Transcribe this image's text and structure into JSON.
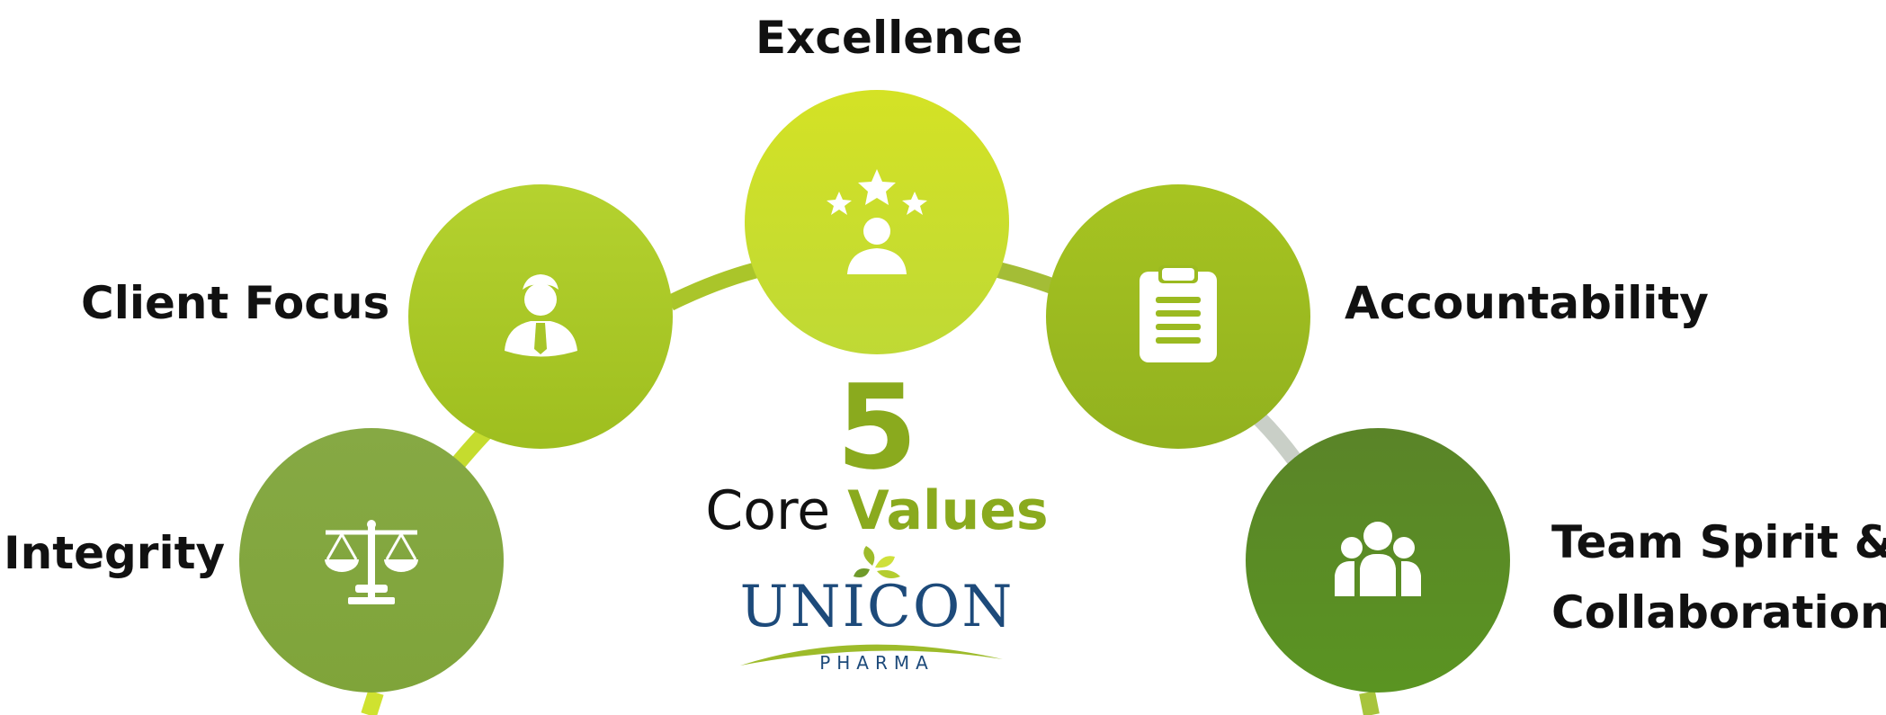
{
  "values": [
    {
      "id": "integrity",
      "label": "Integrity",
      "icon": "scales-of-justice-icon",
      "color": "#86aa43"
    },
    {
      "id": "client-focus",
      "label": "Client Focus",
      "icon": "businessman-icon",
      "color": "#aac929"
    },
    {
      "id": "excellence",
      "label": "Excellence",
      "icon": "person-with-stars-icon",
      "color": "#cade30"
    },
    {
      "id": "accountability",
      "label": "Accountability",
      "icon": "clipboard-icon",
      "color": "#9bba20"
    },
    {
      "id": "team-spirit",
      "label_lines": [
        "Team Spirit &",
        "Collaboration"
      ],
      "icon": "group-of-people-icon",
      "color": "#5e8e24"
    }
  ],
  "center": {
    "number": "5",
    "title_part1": "Core",
    "title_part2": "Values"
  },
  "logo": {
    "name": "UNICON",
    "subtitle": "PHARMA"
  },
  "colors": {
    "arc_green": "#a9c43a",
    "arc_gray": "#c9cfc7",
    "accent_green": "#8aaa1e",
    "logo_blue": "#1d4a7a"
  }
}
